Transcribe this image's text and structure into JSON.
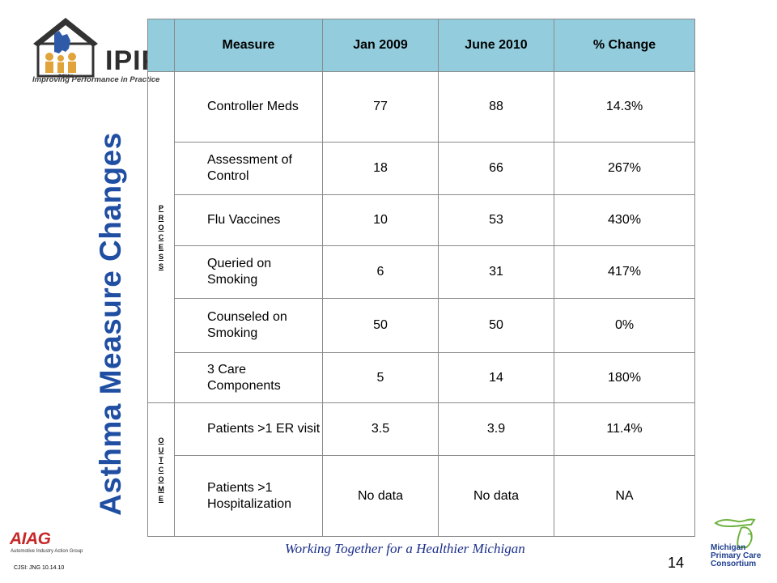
{
  "logo": {
    "name": "IPIP",
    "badge": "PCMH",
    "tagline": "Improving Performance in Practice",
    "color": "#2e2e2e",
    "accent": "#e0a43a"
  },
  "title": "Asthma Measure Changes",
  "table": {
    "headers": [
      "Measure",
      "Jan 2009",
      "June 2010",
      "% Change"
    ],
    "header_bg": "#93cddd",
    "groups": [
      {
        "label": "PROCESS",
        "letters": [
          "P",
          "R",
          "O",
          "C",
          "E",
          "S",
          "S"
        ]
      },
      {
        "label": "OUTCOME",
        "letters": [
          "O",
          "U",
          "T",
          "C",
          "O",
          "M",
          "E"
        ]
      }
    ],
    "rows": [
      {
        "measure": "Controller Meds",
        "jan2009": "77",
        "june2010": "88",
        "change": "14.3%"
      },
      {
        "measure": "Assessment of Control",
        "jan2009": "18",
        "june2010": "66",
        "change": "267%"
      },
      {
        "measure": "Flu Vaccines",
        "jan2009": "10",
        "june2010": "53",
        "change": "430%"
      },
      {
        "measure": "Queried on Smoking",
        "jan2009": "6",
        "june2010": "31",
        "change": "417%"
      },
      {
        "measure": "Counseled on Smoking",
        "jan2009": "50",
        "june2010": "50",
        "change": "0%"
      },
      {
        "measure": "3 Care Components",
        "jan2009": "5",
        "june2010": "14",
        "change": "180%"
      },
      {
        "measure": "Patients >1 ER visit",
        "jan2009": "3.5",
        "june2010": "3.9",
        "change": "11.4%"
      },
      {
        "measure": "Patients >1 Hospitalization",
        "jan2009": "No data",
        "june2010": "No data",
        "change": "NA"
      }
    ]
  },
  "footer": "Working Together for a Healthier Michigan",
  "page_number": "14",
  "credit": "CJSI: JNG 10.14.10",
  "aiag": {
    "name": "AIAG",
    "subtitle": "Automotive Industry Action Group",
    "color": "#c62828"
  },
  "mpcc": {
    "line1": "Michigan",
    "line2": "Primary Care",
    "line3": "Consortium",
    "color": "#1f3f8f",
    "map_color": "#6fb33f"
  },
  "title_color": "#1f4ea2"
}
